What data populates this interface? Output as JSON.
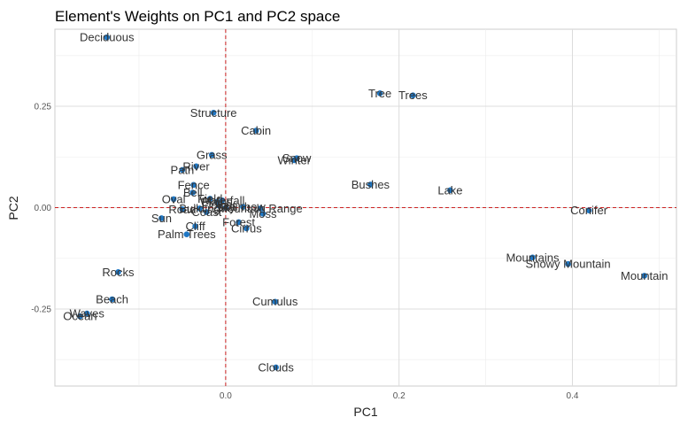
{
  "chart_data": {
    "type": "scatter",
    "title": "Element's Weights on PC1 and PC2 space",
    "xlabel": "PC1",
    "ylabel": "PC2",
    "xlim": [
      -0.197,
      0.52
    ],
    "ylim": [
      -0.44,
      0.44
    ],
    "x_ticks": [
      0.0,
      0.2,
      0.4
    ],
    "x_tick_labels": [
      "0.0",
      "0.2",
      "0.4"
    ],
    "y_ticks": [
      -0.25,
      0.0,
      0.25
    ],
    "y_tick_labels": [
      "-0.25",
      "0.00",
      "0.25"
    ],
    "grid": true,
    "reference_lines": {
      "x": 0,
      "y": 0
    },
    "point_color": "#1f77c4",
    "reference_color": "#cc2222",
    "points": [
      {
        "label": "Deciduous",
        "x": -0.137,
        "y": 0.42
      },
      {
        "label": "Tree",
        "x": 0.178,
        "y": 0.282
      },
      {
        "label": "Trees",
        "x": 0.216,
        "y": 0.277
      },
      {
        "label": "Structure",
        "x": -0.014,
        "y": 0.234
      },
      {
        "label": "Cabin",
        "x": 0.035,
        "y": 0.19
      },
      {
        "label": "Grass",
        "x": -0.016,
        "y": 0.13
      },
      {
        "label": "Snow",
        "x": 0.082,
        "y": 0.122
      },
      {
        "label": "Winter",
        "x": 0.079,
        "y": 0.117
      },
      {
        "label": "River",
        "x": -0.034,
        "y": 0.102
      },
      {
        "label": "Path",
        "x": -0.05,
        "y": 0.093
      },
      {
        "label": "Bushes",
        "x": 0.167,
        "y": 0.057
      },
      {
        "label": "Fence",
        "x": -0.037,
        "y": 0.056
      },
      {
        "label": "Lake",
        "x": 0.259,
        "y": 0.043
      },
      {
        "label": "Oval",
        "x": -0.06,
        "y": 0.021
      },
      {
        "label": "Bell",
        "x": -0.038,
        "y": 0.037
      },
      {
        "label": "Plains",
        "x": -0.01,
        "y": 0.014
      },
      {
        "label": "Field",
        "x": -0.018,
        "y": 0.022
      },
      {
        "label": "Waterfall",
        "x": -0.004,
        "y": 0.018
      },
      {
        "label": "Flower",
        "x": -0.008,
        "y": 0.005
      },
      {
        "label": "Sky",
        "x": 0.0,
        "y": 0.0
      },
      {
        "label": "Rainbow",
        "x": 0.02,
        "y": 0.002
      },
      {
        "label": "Mountain Range",
        "x": 0.04,
        "y": -0.002
      },
      {
        "label": "Building",
        "x": -0.03,
        "y": -0.002
      },
      {
        "label": "Road",
        "x": -0.05,
        "y": -0.004
      },
      {
        "label": "Moss",
        "x": 0.043,
        "y": -0.015
      },
      {
        "label": "Coast",
        "x": -0.022,
        "y": -0.011
      },
      {
        "label": "Sun",
        "x": -0.074,
        "y": -0.026
      },
      {
        "label": "Forest",
        "x": 0.015,
        "y": -0.036
      },
      {
        "label": "Cirrus",
        "x": 0.024,
        "y": -0.051
      },
      {
        "label": "Cliff",
        "x": -0.035,
        "y": -0.046
      },
      {
        "label": "Palm Trees",
        "x": -0.045,
        "y": -0.066
      },
      {
        "label": "Conifer",
        "x": 0.419,
        "y": -0.007
      },
      {
        "label": "Mountains",
        "x": 0.354,
        "y": -0.123
      },
      {
        "label": "Snowy Mountain",
        "x": 0.395,
        "y": -0.139
      },
      {
        "label": "Mountain",
        "x": 0.483,
        "y": -0.168
      },
      {
        "label": "Rocks",
        "x": -0.124,
        "y": -0.159
      },
      {
        "label": "Beach",
        "x": -0.131,
        "y": -0.226
      },
      {
        "label": "Waves",
        "x": -0.16,
        "y": -0.261
      },
      {
        "label": "Ocean",
        "x": -0.168,
        "y": -0.268
      },
      {
        "label": "Cumulus",
        "x": 0.057,
        "y": -0.232
      },
      {
        "label": "Clouds",
        "x": 0.058,
        "y": -0.394
      }
    ]
  }
}
